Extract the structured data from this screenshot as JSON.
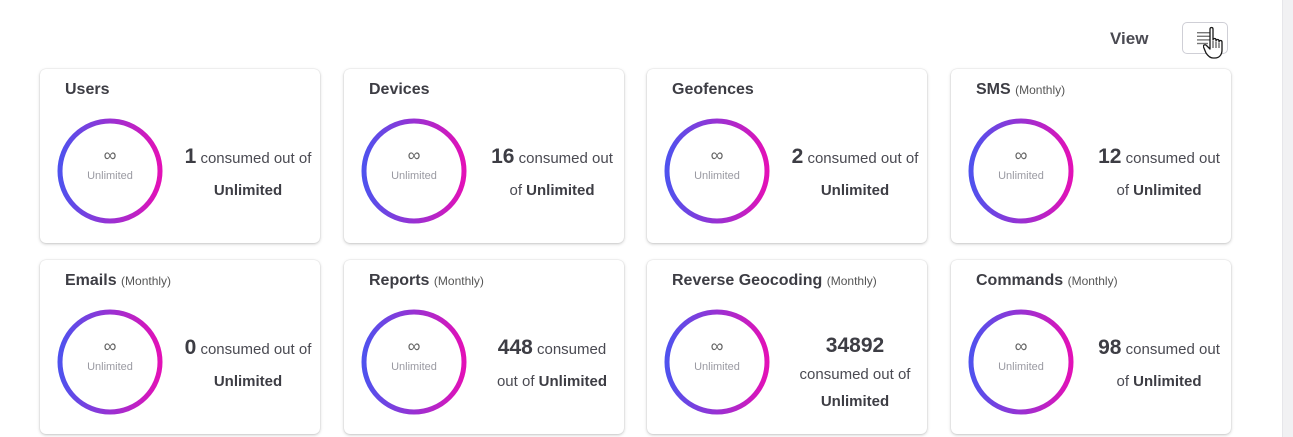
{
  "header": {
    "view_label": "View"
  },
  "cards": [
    {
      "title": "Users",
      "period": "",
      "infinity": "∞",
      "ring_label": "Unlimited",
      "count": "1",
      "consumed_text": "consumed out of",
      "limit": "Unlimited"
    },
    {
      "title": "Devices",
      "period": "",
      "infinity": "∞",
      "ring_label": "Unlimited",
      "count": "16",
      "consumed_text": "consumed out of",
      "limit": "Unlimited"
    },
    {
      "title": "Geofences",
      "period": "",
      "infinity": "∞",
      "ring_label": "Unlimited",
      "count": "2",
      "consumed_text": "consumed out of",
      "limit": "Unlimited"
    },
    {
      "title": "SMS",
      "period": "(Monthly)",
      "infinity": "∞",
      "ring_label": "Unlimited",
      "count": "12",
      "consumed_text": "consumed out of",
      "limit": "Unlimited"
    },
    {
      "title": "Emails",
      "period": "(Monthly)",
      "infinity": "∞",
      "ring_label": "Unlimited",
      "count": "0",
      "consumed_text": "consumed out of",
      "limit": "Unlimited"
    },
    {
      "title": "Reports",
      "period": "(Monthly)",
      "infinity": "∞",
      "ring_label": "Unlimited",
      "count": "448",
      "consumed_text": "consumed out of",
      "limit": "Unlimited"
    },
    {
      "title": "Reverse Geocoding",
      "period": "(Monthly)",
      "infinity": "∞",
      "ring_label": "Unlimited",
      "count": "34892",
      "consumed_text": "consumed out of",
      "limit": "Unlimited"
    },
    {
      "title": "Commands",
      "period": "(Monthly)",
      "infinity": "∞",
      "ring_label": "Unlimited",
      "count": "98",
      "consumed_text": "consumed out of",
      "limit": "Unlimited"
    }
  ],
  "icons": {
    "view_toggle": "list-view-icon",
    "cursor": "hand-pointer-icon"
  },
  "colors": {
    "ring_gradient_start": "#4f52ee",
    "ring_gradient_end": "#e211b7",
    "text_dark": "#3d3d44"
  }
}
